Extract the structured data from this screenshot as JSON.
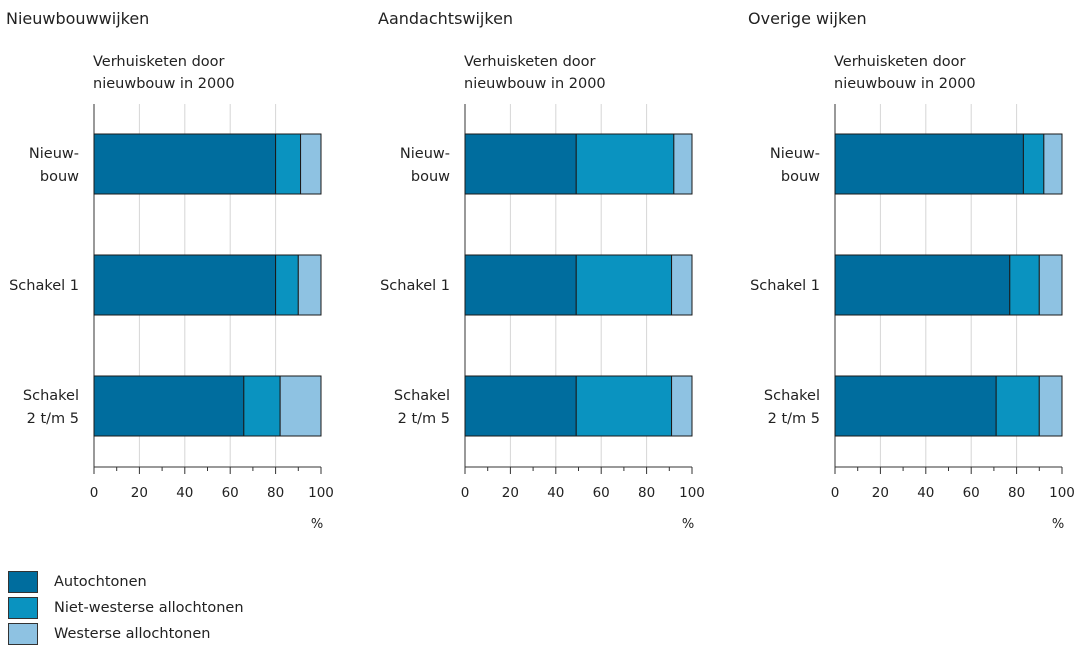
{
  "chart_data": [
    {
      "type": "bar",
      "orientation": "horizontal",
      "stacked": true,
      "title": "Nieuwbouwwijken",
      "subtitle": "Verhuisketen door nieuwbouw in 2000",
      "categories": [
        "Nieuw- bouw",
        "Schakel 1",
        "Schakel 2 t/m 5"
      ],
      "series": [
        {
          "name": "Autochtonen",
          "values": [
            80,
            80,
            66
          ]
        },
        {
          "name": "Niet-westerse allochtonen",
          "values": [
            11,
            10,
            16
          ]
        },
        {
          "name": "Westerse allochtonen",
          "values": [
            9,
            10,
            18
          ]
        }
      ],
      "xlim": [
        0,
        100
      ],
      "xticks": [
        "0",
        "20",
        "40",
        "60",
        "80",
        "100"
      ],
      "xunit": "%",
      "grid": true
    },
    {
      "type": "bar",
      "orientation": "horizontal",
      "stacked": true,
      "title": "Aandachtswijken",
      "subtitle": "Verhuisketen door nieuwbouw in 2000",
      "categories": [
        "Nieuw- bouw",
        "Schakel 1",
        "Schakel 2 t/m 5"
      ],
      "series": [
        {
          "name": "Autochtonen",
          "values": [
            49,
            49,
            49
          ]
        },
        {
          "name": "Niet-westerse allochtonen",
          "values": [
            43,
            42,
            42
          ]
        },
        {
          "name": "Westerse allochtonen",
          "values": [
            8,
            9,
            9
          ]
        }
      ],
      "xlim": [
        0,
        100
      ],
      "xticks": [
        "0",
        "20",
        "40",
        "60",
        "80",
        "100"
      ],
      "xunit": "%",
      "grid": true
    },
    {
      "type": "bar",
      "orientation": "horizontal",
      "stacked": true,
      "title": "Overige wijken",
      "subtitle": "Verhuisketen door nieuwbouw in 2000",
      "categories": [
        "Nieuw- bouw",
        "Schakel 1",
        "Schakel 2 t/m 5"
      ],
      "series": [
        {
          "name": "Autochtonen",
          "values": [
            83,
            77,
            71
          ]
        },
        {
          "name": "Niet-westerse allochtonen",
          "values": [
            9,
            13,
            19
          ]
        },
        {
          "name": "Westerse allochtonen",
          "values": [
            8,
            10,
            10
          ]
        }
      ],
      "xlim": [
        0,
        100
      ],
      "xticks": [
        "0",
        "20",
        "40",
        "60",
        "80",
        "100"
      ],
      "xunit": "%",
      "grid": true
    }
  ],
  "legend": [
    {
      "label": "Autochtonen",
      "color": "#006d9e"
    },
    {
      "label": "Niet-westerse allochtonen",
      "color": "#0a93c0"
    },
    {
      "label": "Westerse allochtonen",
      "color": "#8ec2e2"
    }
  ],
  "colors": {
    "autochtonen": "#006d9e",
    "niet_westers": "#0a93c0",
    "westers": "#8ec2e2",
    "grid": "#d6d6d6"
  }
}
